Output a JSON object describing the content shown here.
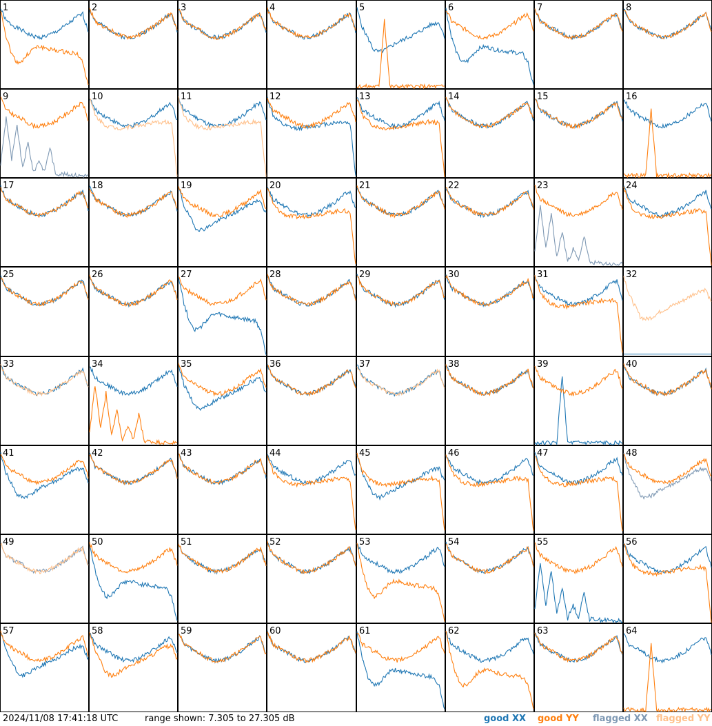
{
  "footer": {
    "timestamp": "2024/11/08 17:41:18 UTC",
    "range": "range shown: 7.305 to 27.305 dB"
  },
  "legend": [
    {
      "label": "good XX",
      "color": "#1f77b4"
    },
    {
      "label": "good YY",
      "color": "#ff7f0e"
    },
    {
      "label": "flagged XX",
      "color": "#7f99b4"
    },
    {
      "label": "flagged YY",
      "color": "#ffc08a"
    }
  ],
  "chart_data": {
    "type": "line",
    "grid": "8x8 small multiples",
    "ylim": [
      7.305,
      27.305
    ],
    "yunit": "dB",
    "panel_labels": [
      "1",
      "2",
      "3",
      "4",
      "5",
      "6",
      "7",
      "8",
      "9",
      "10",
      "11",
      "12",
      "13",
      "14",
      "15",
      "16",
      "17",
      "18",
      "19",
      "20",
      "21",
      "22",
      "23",
      "24",
      "25",
      "26",
      "27",
      "28",
      "29",
      "30",
      "31",
      "32",
      "33",
      "34",
      "35",
      "36",
      "37",
      "38",
      "39",
      "40",
      "41",
      "42",
      "43",
      "44",
      "45",
      "46",
      "47",
      "48",
      "49",
      "50",
      "51",
      "52",
      "53",
      "54",
      "55",
      "56",
      "57",
      "58",
      "59",
      "60",
      "61",
      "62",
      "63",
      "64"
    ],
    "series_types": [
      "good XX",
      "good YY",
      "flagged XX",
      "flagged YY"
    ],
    "profiles": {
      "normal": [
        0.92,
        0.78,
        0.74,
        0.7,
        0.67,
        0.63,
        0.6,
        0.59,
        0.6,
        0.62,
        0.65,
        0.69,
        0.73,
        0.78,
        0.83,
        0.86,
        0.66
      ],
      "hump": [
        0.92,
        0.6,
        0.4,
        0.3,
        0.32,
        0.4,
        0.46,
        0.48,
        0.47,
        0.45,
        0.44,
        0.43,
        0.42,
        0.41,
        0.4,
        0.3,
        0.02
      ],
      "mid": [
        0.92,
        0.72,
        0.65,
        0.6,
        0.58,
        0.57,
        0.57,
        0.58,
        0.59,
        0.6,
        0.61,
        0.62,
        0.63,
        0.64,
        0.64,
        0.62,
        0.02
      ],
      "low": [
        0.92,
        0.7,
        0.58,
        0.45,
        0.42,
        0.44,
        0.48,
        0.52,
        0.55,
        0.58,
        0.61,
        0.64,
        0.68,
        0.72,
        0.75,
        0.76,
        0.6
      ],
      "spiky": [
        0.15,
        0.7,
        0.2,
        0.6,
        0.1,
        0.4,
        0.05,
        0.2,
        0.06,
        0.35,
        0.04,
        0.04,
        0.03,
        0.03,
        0.02,
        0.02,
        0.02
      ],
      "flat": [
        0.02,
        0.02,
        0.02,
        0.02,
        0.02,
        0.02,
        0.02,
        0.02,
        0.02,
        0.02,
        0.02,
        0.02,
        0.02,
        0.02,
        0.02,
        0.02,
        0.02
      ],
      "spike": [
        0.02,
        0.02,
        0.02,
        0.02,
        0.02,
        0.8,
        0.02,
        0.02,
        0.02,
        0.02,
        0.02,
        0.02,
        0.02,
        0.02,
        0.02,
        0.02,
        0.02
      ]
    },
    "panels": [
      {
        "xx": "normal",
        "yy": "hump"
      },
      {
        "xx": "normal",
        "yy": "normal"
      },
      {
        "xx": "normal",
        "yy": "normal"
      },
      {
        "xx": "normal",
        "yy": "normal"
      },
      {
        "xx": "low",
        "yy": "spike"
      },
      {
        "xx": "hump",
        "yy": "normal"
      },
      {
        "xx": "normal",
        "yy": "normal"
      },
      {
        "xx": "normal",
        "yy": "normal"
      },
      {
        "xx": "spiky",
        "yy": "normal",
        "xx_flag": true
      },
      {
        "xx": "normal",
        "yy": "mid",
        "yy_flag": true
      },
      {
        "xx": "normal",
        "yy": "mid",
        "yy_flag": true
      },
      {
        "xx": "mid",
        "yy": "normal"
      },
      {
        "xx": "normal",
        "yy": "mid"
      },
      {
        "xx": "normal",
        "yy": "normal"
      },
      {
        "xx": "normal",
        "yy": "normal"
      },
      {
        "xx": "normal",
        "yy": "spike"
      },
      {
        "xx": "normal",
        "yy": "normal"
      },
      {
        "xx": "normal",
        "yy": "normal"
      },
      {
        "xx": "low",
        "yy": "normal"
      },
      {
        "xx": "normal",
        "yy": "mid"
      },
      {
        "xx": "normal",
        "yy": "normal"
      },
      {
        "xx": "normal",
        "yy": "normal"
      },
      {
        "xx": "spiky",
        "yy": "normal",
        "xx_flag": true
      },
      {
        "xx": "normal",
        "yy": "mid"
      },
      {
        "xx": "normal",
        "yy": "normal"
      },
      {
        "xx": "normal",
        "yy": "normal"
      },
      {
        "xx": "hump",
        "yy": "normal"
      },
      {
        "xx": "normal",
        "yy": "normal"
      },
      {
        "xx": "normal",
        "yy": "normal"
      },
      {
        "xx": "normal",
        "yy": "normal"
      },
      {
        "xx": "normal",
        "yy": "mid"
      },
      {
        "xx": "flat",
        "yy": "low",
        "yy_flag": true
      },
      {
        "xx": "normal",
        "yy": "normal",
        "yy_flag": true
      },
      {
        "xx": "normal",
        "yy": "spiky"
      },
      {
        "xx": "low",
        "yy": "normal"
      },
      {
        "xx": "normal",
        "yy": "normal"
      },
      {
        "xx": "normal",
        "yy": "normal",
        "yy_flag": true
      },
      {
        "xx": "normal",
        "yy": "normal"
      },
      {
        "xx": "spike",
        "yy": "normal"
      },
      {
        "xx": "normal",
        "yy": "normal"
      },
      {
        "xx": "low",
        "yy": "normal"
      },
      {
        "xx": "normal",
        "yy": "normal"
      },
      {
        "xx": "normal",
        "yy": "normal"
      },
      {
        "xx": "normal",
        "yy": "mid"
      },
      {
        "xx": "low",
        "yy": "mid"
      },
      {
        "xx": "normal",
        "yy": "mid"
      },
      {
        "xx": "normal",
        "yy": "mid"
      },
      {
        "xx": "low",
        "yy": "normal",
        "xx_flag": true
      },
      {
        "xx": "normal",
        "yy": "normal",
        "xx_flag": true,
        "yy_flag": true
      },
      {
        "xx": "hump",
        "yy": "normal"
      },
      {
        "xx": "normal",
        "yy": "normal"
      },
      {
        "xx": "normal",
        "yy": "normal"
      },
      {
        "xx": "normal",
        "yy": "hump"
      },
      {
        "xx": "normal",
        "yy": "normal"
      },
      {
        "xx": "spiky",
        "yy": "normal"
      },
      {
        "xx": "normal",
        "yy": "mid"
      },
      {
        "xx": "low",
        "yy": "normal"
      },
      {
        "xx": "normal",
        "yy": "low"
      },
      {
        "xx": "normal",
        "yy": "normal"
      },
      {
        "xx": "normal",
        "yy": "normal"
      },
      {
        "xx": "hump",
        "yy": "normal"
      },
      {
        "xx": "normal",
        "yy": "hump"
      },
      {
        "xx": "normal",
        "yy": "normal"
      },
      {
        "xx": "normal",
        "yy": "spike"
      }
    ]
  }
}
